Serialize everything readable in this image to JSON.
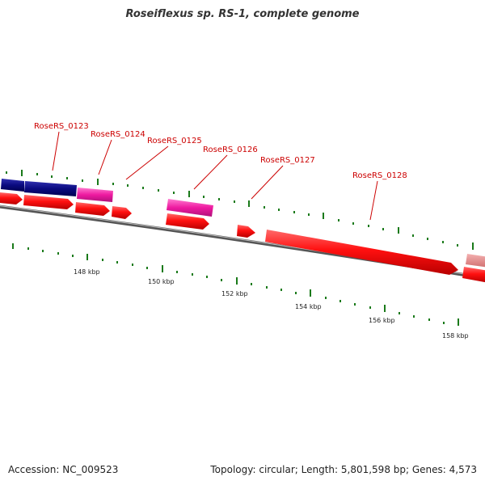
{
  "title": "Roseiflexus sp. RS-1, complete genome",
  "footer": {
    "accession": "Accession: NC_009523",
    "summary": "Topology: circular; Length: 5,801,598 bp; Genes: 4,573"
  },
  "gene_labels": [
    "RoseRS_0123",
    "RoseRS_0124",
    "RoseRS_0125",
    "RoseRS_0126",
    "RoseRS_0127",
    "RoseRS_0128"
  ],
  "kbp_ticks": [
    "148 kbp",
    "150 kbp",
    "152 kbp",
    "154 kbp",
    "156 kbp",
    "158 kbp"
  ],
  "colors": {
    "gene_label": "#cc0000",
    "cds_forward": "#ff1111",
    "cds_navy": "#0a0a80",
    "cds_magenta": "#ee1aa0",
    "cds_salmon": "#e88888",
    "backbone": "#777777",
    "tick": "#1a7a1a"
  }
}
